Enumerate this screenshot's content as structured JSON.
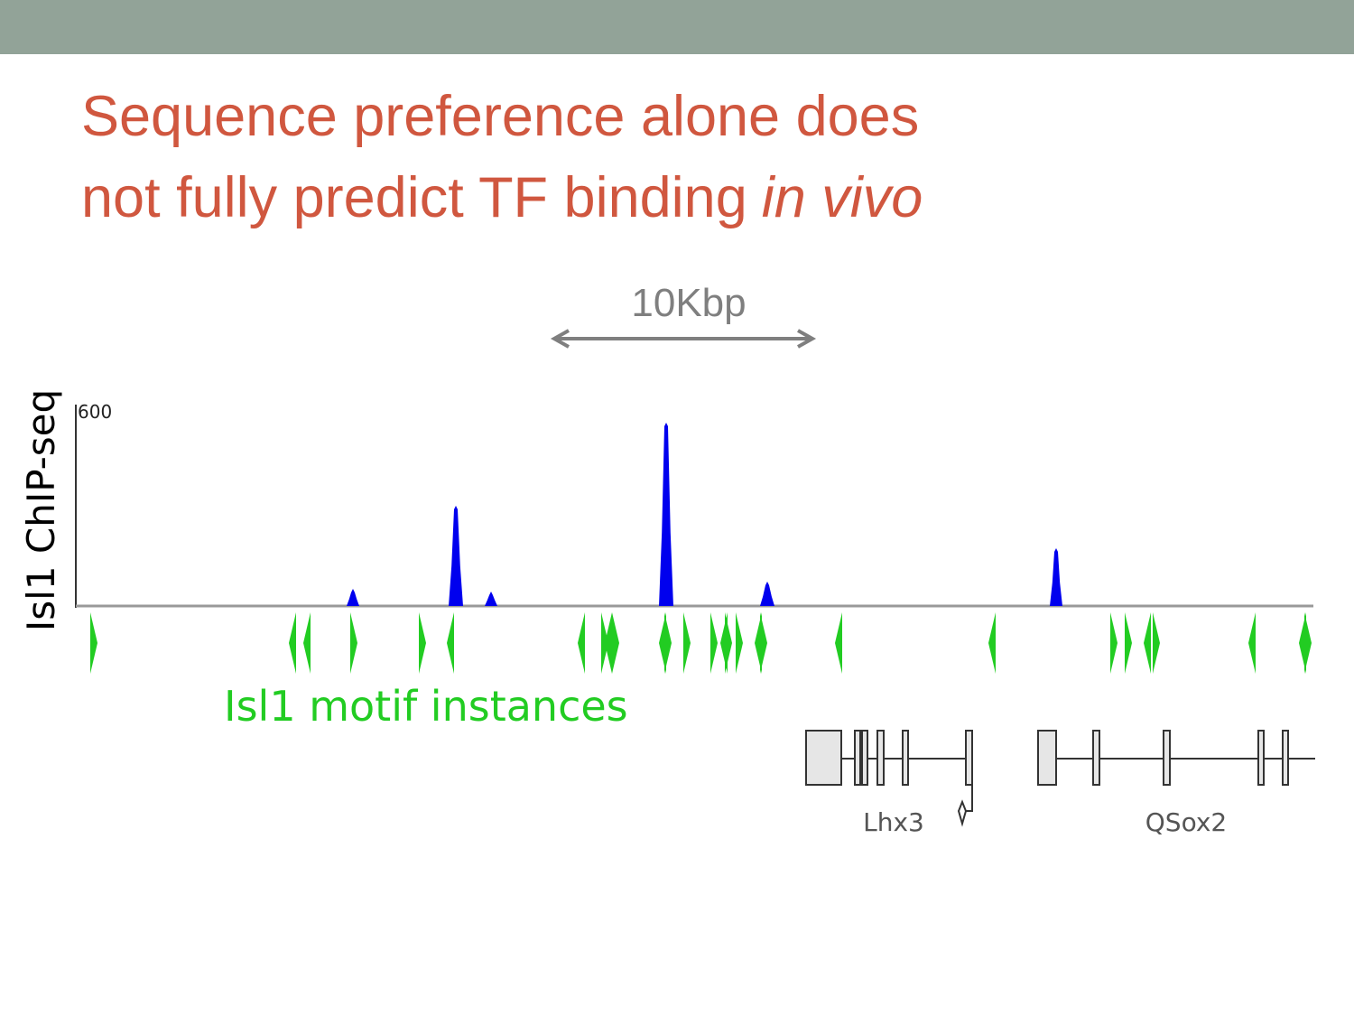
{
  "title": {
    "line1": "Sequence preference alone does",
    "line2_plain": "not fully predict TF binding",
    "line2_italic": "in vivo"
  },
  "figure": {
    "scale_label": "10Kbp",
    "track_label": "Isl1 ChIP-seq",
    "track_max_label": "600",
    "motif_label": "Isl1 motif instances",
    "genes": [
      "Lhx3",
      "QSox2"
    ]
  }
}
